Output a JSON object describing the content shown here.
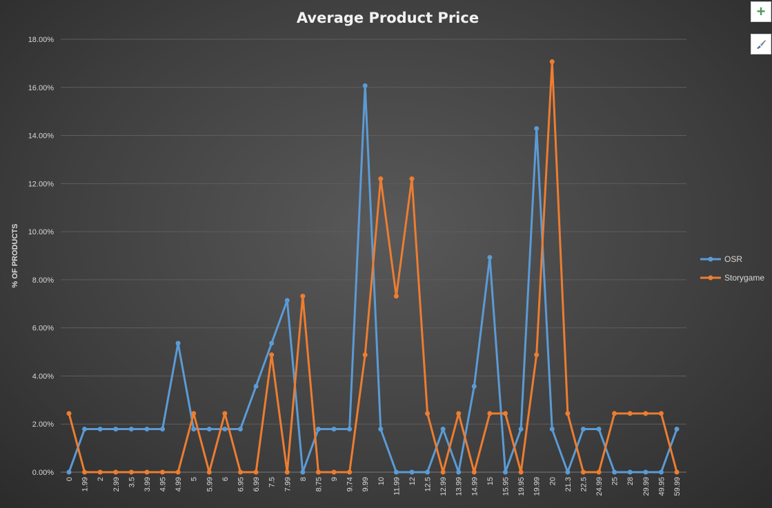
{
  "chart_data": {
    "type": "line",
    "title": "Average Product Price",
    "xlabel": "",
    "ylabel": "% OF PRODUCTS",
    "ylim": [
      0,
      18
    ],
    "yticks": [
      "0.00%",
      "2.00%",
      "4.00%",
      "6.00%",
      "8.00%",
      "10.00%",
      "12.00%",
      "14.00%",
      "16.00%",
      "18.00%"
    ],
    "grid": true,
    "legend_position": "right",
    "categories": [
      "0",
      "1.99",
      "2",
      "2.99",
      "3.5",
      "3.99",
      "4.95",
      "4.99",
      "5",
      "5.99",
      "6",
      "6.95",
      "6.99",
      "7.5",
      "7.99",
      "8",
      "8.75",
      "9",
      "9.74",
      "9.99",
      "10",
      "11.99",
      "12",
      "12.5",
      "12.99",
      "13.99",
      "14.99",
      "15",
      "15.95",
      "19.95",
      "19.99",
      "20",
      "21.3",
      "22.5",
      "24.99",
      "25",
      "28",
      "29.99",
      "49.95",
      "59.99"
    ],
    "series": [
      {
        "name": "OSR",
        "color": "#5b9bd5",
        "values": [
          0,
          1.79,
          1.79,
          1.79,
          1.79,
          1.79,
          1.79,
          5.36,
          1.79,
          1.79,
          1.79,
          1.79,
          3.57,
          5.36,
          7.14,
          0,
          1.79,
          1.79,
          1.79,
          16.07,
          1.79,
          0,
          0,
          0,
          1.79,
          0,
          3.57,
          8.93,
          0,
          1.79,
          14.29,
          1.79,
          0,
          1.79,
          1.79,
          0,
          0,
          0,
          0,
          1.79
        ]
      },
      {
        "name": "Storygame",
        "color": "#ed7d31",
        "values": [
          2.44,
          0,
          0,
          0,
          0,
          0,
          0,
          0,
          2.44,
          0,
          2.44,
          0,
          0,
          4.88,
          0,
          7.32,
          0,
          0,
          0,
          4.88,
          12.2,
          7.32,
          12.2,
          2.44,
          0,
          2.44,
          0,
          2.44,
          2.44,
          0,
          4.88,
          17.07,
          2.44,
          0,
          0,
          2.44,
          2.44,
          2.44,
          2.44,
          0
        ]
      }
    ]
  },
  "side_buttons": {
    "add_icon": "plus-icon",
    "style_icon": "paintbrush-icon"
  }
}
